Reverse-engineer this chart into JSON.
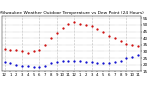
{
  "title": "Milwaukee Weather Outdoor Temperature vs Dew Point (24 Hours)",
  "title_fontsize": 3.2,
  "background_color": "#ffffff",
  "temp_color": "#cc0000",
  "dew_color": "#0000cc",
  "hours": [
    0,
    1,
    2,
    3,
    4,
    5,
    6,
    7,
    8,
    9,
    10,
    11,
    12,
    13,
    14,
    15,
    16,
    17,
    18,
    19,
    20,
    21,
    22,
    23
  ],
  "temperature": [
    32,
    31,
    31,
    30,
    29,
    30,
    31,
    35,
    40,
    44,
    48,
    51,
    52,
    51,
    50,
    49,
    47,
    45,
    42,
    40,
    38,
    36,
    35,
    34
  ],
  "dew_point": [
    22,
    21,
    20,
    19,
    19,
    18,
    18,
    19,
    21,
    22,
    23,
    23,
    23,
    23,
    22,
    22,
    21,
    21,
    21,
    22,
    23,
    25,
    26,
    27
  ],
  "ylim": [
    15,
    57
  ],
  "grid_positions": [
    0,
    3,
    6,
    9,
    12,
    15,
    18,
    21
  ],
  "grid_color": "#888888",
  "marker_size": 1.2,
  "ylabel_fontsize": 3.0,
  "xlabel_fontsize": 2.8,
  "ytick_interval": 5
}
